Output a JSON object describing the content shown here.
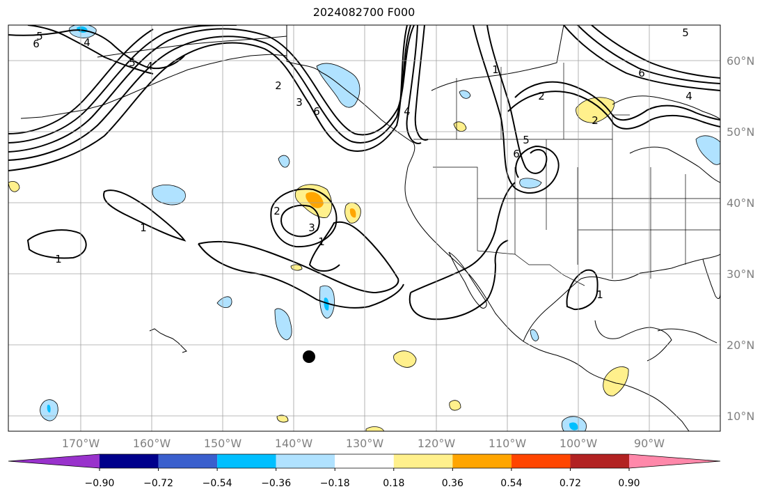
{
  "title": "2024082700 F000",
  "map": {
    "lat_labels": [
      "60°N",
      "50°N",
      "40°N",
      "30°N",
      "20°N",
      "10°N"
    ],
    "lon_labels": [
      "170°W",
      "160°W",
      "150°W",
      "140°W",
      "130°W",
      "120°W",
      "110°W",
      "100°W",
      "90°W"
    ],
    "contour_labels": [
      "5",
      "6",
      "4",
      "5",
      "4",
      "2",
      "3",
      "6",
      "4",
      "2",
      "5",
      "6",
      "2",
      "6",
      "5",
      "4",
      "1",
      "1",
      "1",
      "2",
      "3",
      "1",
      "1"
    ],
    "colors": {
      "land_outline": "#000000",
      "grid": "#a0a0a0",
      "contour": "#000000"
    }
  },
  "colorbar": {
    "ticks": [
      "−0.90",
      "−0.72",
      "−0.54",
      "−0.36",
      "−0.18",
      "0.18",
      "0.36",
      "0.54",
      "0.72",
      "0.90"
    ],
    "colors": [
      "#9932cc",
      "#00008b",
      "#3a5fcd",
      "#00bfff",
      "#b0e2ff",
      "#ffffff",
      "#fff08c",
      "#ffa500",
      "#ff4500",
      "#b22222",
      "#ff88aa"
    ]
  }
}
